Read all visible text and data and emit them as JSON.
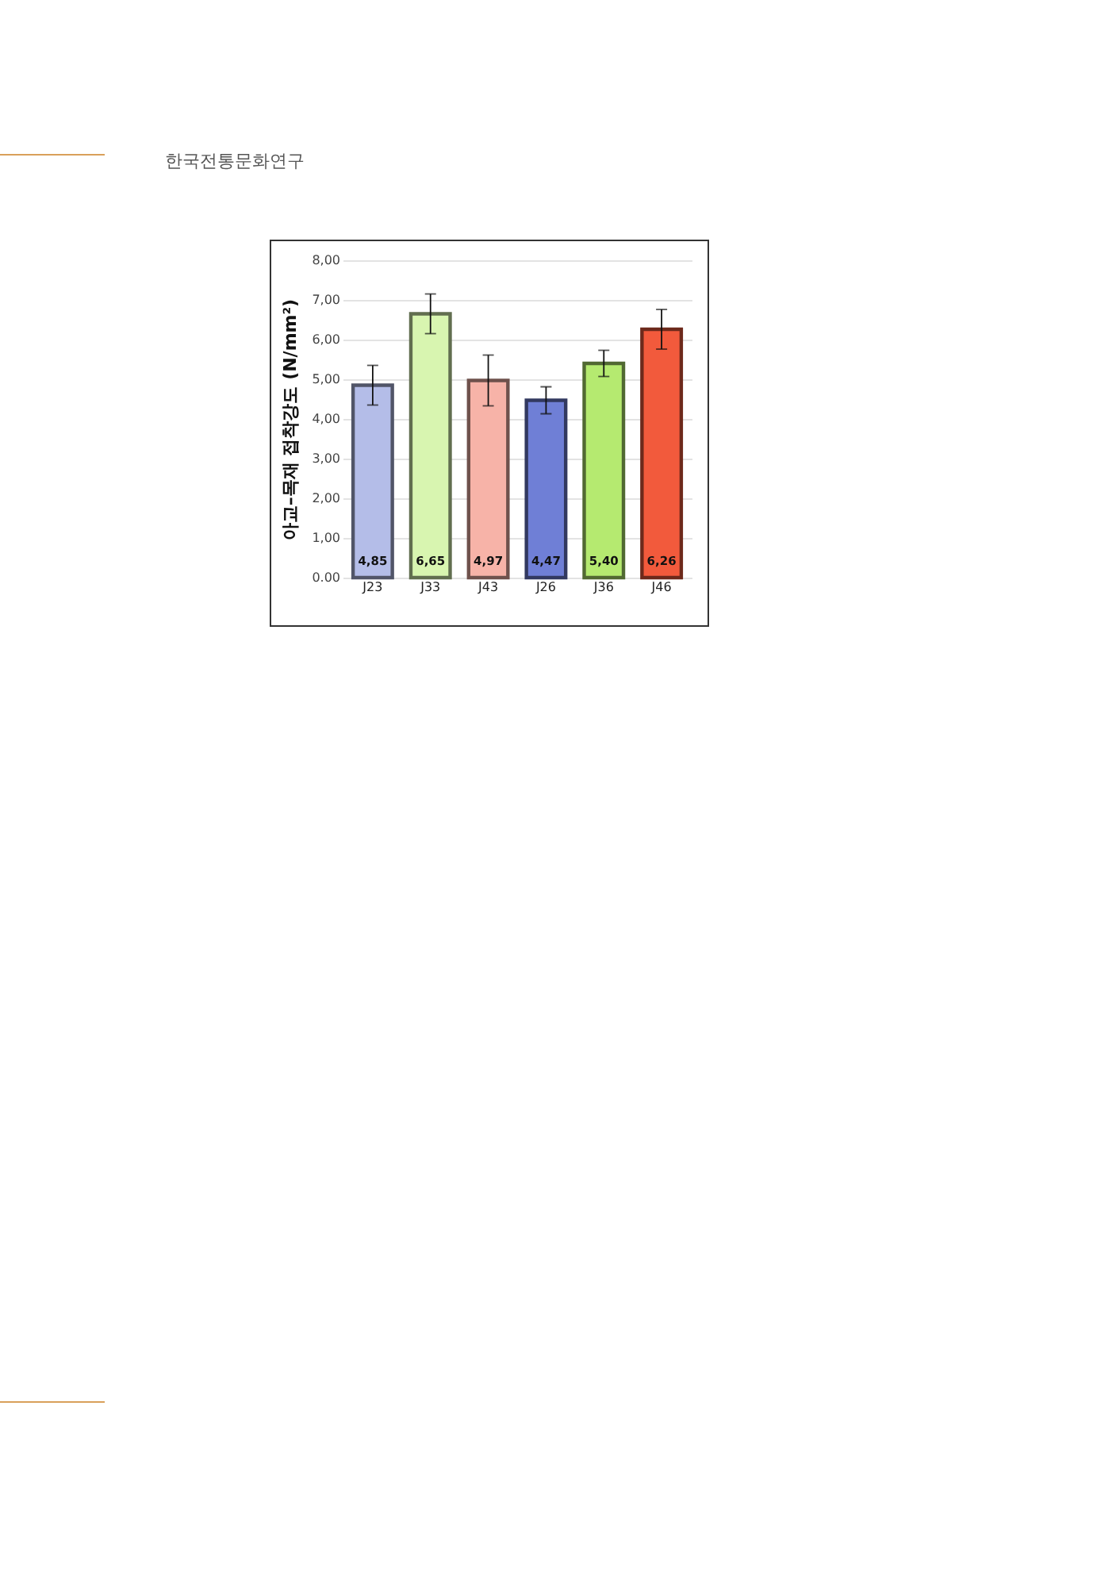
{
  "chart_data": {
    "type": "bar",
    "ylabel": "아교–목재 접착강도 (N/mm²)",
    "annotations": [
      "한국전통문화연구"
    ],
    "categories": [
      "J23",
      "J33",
      "J43",
      "J26",
      "J36",
      "J46"
    ],
    "values": [
      4.85,
      6.65,
      4.97,
      4.47,
      5.4,
      6.26
    ],
    "errors": [
      0.5,
      0.5,
      0.64,
      0.34,
      0.33,
      0.5
    ],
    "colors": [
      "#b4bde8",
      "#d8f5b0",
      "#f7b3a8",
      "#6f7fd6",
      "#b5ea70",
      "#f25a3c"
    ],
    "value_labels": [
      "4,85",
      "6,65",
      "4,97",
      "4,47",
      "5,40",
      "6,26"
    ],
    "ylim": [
      0,
      8
    ],
    "yticks": [
      {
        "value": 0,
        "label": "0.00"
      },
      {
        "value": 1,
        "label": "1,00"
      },
      {
        "value": 2,
        "label": "2,00"
      },
      {
        "value": 3,
        "label": "3,00"
      },
      {
        "value": 4,
        "label": "4,00"
      },
      {
        "value": 5,
        "label": "5,00"
      },
      {
        "value": 6,
        "label": "6,00"
      },
      {
        "value": 7,
        "label": "7,00"
      },
      {
        "value": 8,
        "label": "8,00"
      }
    ],
    "grid": "y"
  }
}
